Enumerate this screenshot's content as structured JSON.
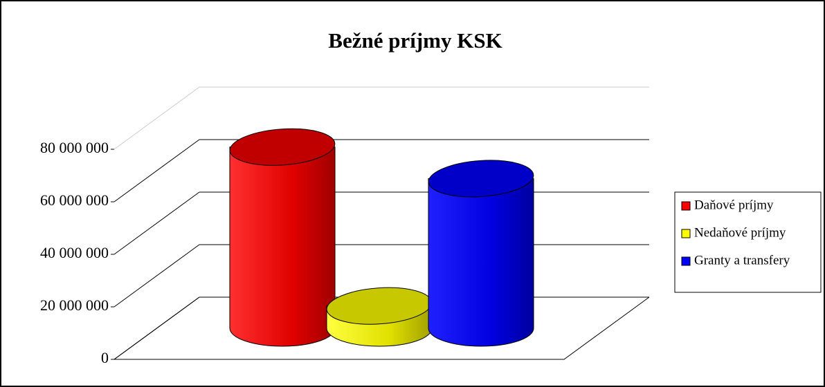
{
  "chart_data": {
    "type": "bar3d",
    "title": "Bežné príjmy KSK",
    "categories": [
      null
    ],
    "series": [
      {
        "name": "Daňové príjmy",
        "color": "#ff0000",
        "values": [
          69000000
        ]
      },
      {
        "name": "Nedaňové príjmy",
        "color": "#ffff00",
        "values": [
          8500000
        ]
      },
      {
        "name": "Granty a transfery",
        "color": "#0000ff",
        "values": [
          57000000
        ]
      }
    ],
    "ylim": [
      0,
      80000000
    ],
    "yticks": [
      0,
      {
        "value": 20000000,
        "label": "20 000 000"
      },
      {
        "value": 40000000,
        "label": "40 000 000"
      },
      {
        "value": 60000000,
        "label": "60 000 000"
      },
      {
        "value": 80000000,
        "label": "80 000 000"
      }
    ],
    "grid": true,
    "legend": "right"
  }
}
